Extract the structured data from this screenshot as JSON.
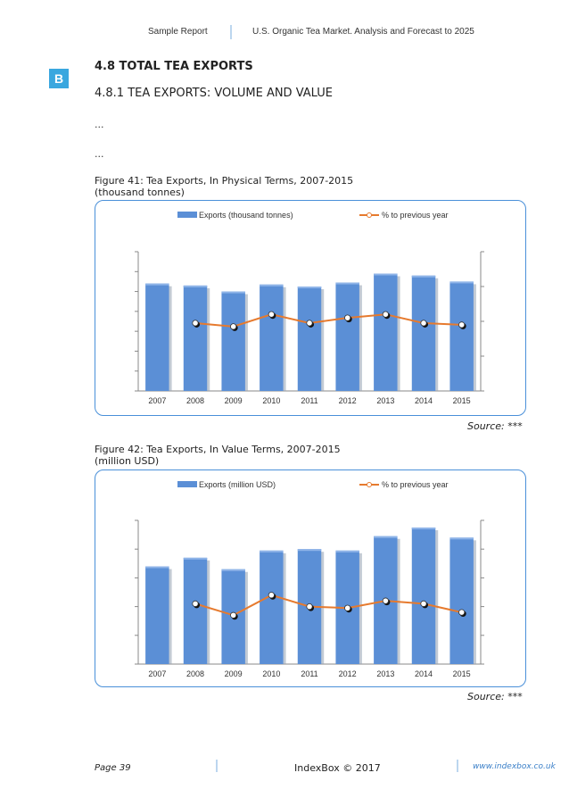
{
  "header": {
    "left": "Sample Report",
    "right": "U.S. Organic Tea Market. Analysis and Forecast to 2025"
  },
  "logo_letter": "B",
  "section": {
    "title": "4.8 TOTAL TEA EXPORTS",
    "subtitle": "4.8.1 TEA EXPORTS: VOLUME AND VALUE",
    "ellipsis_1": "...",
    "ellipsis_2": "..."
  },
  "figures": [
    {
      "caption_line1": "Figure 41: Tea Exports, In Physical Terms, 2007-2015",
      "caption_line2": "(thousand tonnes)",
      "source_label": "Source:",
      "source_value": "***"
    },
    {
      "caption_line1": "Figure 42: Tea Exports, In Value Terms, 2007-2015",
      "caption_line2": "(million USD)",
      "source_label": "Source:",
      "source_value": "***"
    }
  ],
  "chart_data": [
    {
      "type": "bar",
      "title": "Tea Exports, In Physical Terms, 2007-2015",
      "categories": [
        "2007",
        "2008",
        "2009",
        "2010",
        "2011",
        "2012",
        "2013",
        "2014",
        "2015"
      ],
      "series": [
        {
          "name": "Exports (thousand tonnes)",
          "type": "bar",
          "axis": "left",
          "values": [
            5.4,
            5.3,
            5.0,
            5.35,
            5.25,
            5.45,
            5.9,
            5.8,
            5.5
          ]
        },
        {
          "name": "% to previous year",
          "type": "line",
          "axis": "right",
          "values": [
            null,
            1.95,
            1.85,
            2.2,
            1.95,
            2.1,
            2.2,
            1.95,
            1.9
          ]
        }
      ],
      "ylim_left": [
        0,
        7
      ],
      "ylim_right": [
        0,
        4
      ],
      "grid": false,
      "legend": "top",
      "colors": {
        "bar": "#5b8fd6",
        "line": "#e67a2e"
      }
    },
    {
      "type": "bar",
      "title": "Tea Exports, In Value Terms, 2007-2015",
      "categories": [
        "2007",
        "2008",
        "2009",
        "2010",
        "2011",
        "2012",
        "2013",
        "2014",
        "2015"
      ],
      "series": [
        {
          "name": "Exports (million  USD)",
          "type": "bar",
          "axis": "left",
          "values": [
            3.4,
            3.7,
            3.3,
            3.95,
            4.0,
            3.95,
            4.45,
            4.75,
            4.4
          ]
        },
        {
          "name": "% to previous year",
          "type": "line",
          "axis": "right",
          "values": [
            null,
            2.1,
            1.7,
            2.4,
            2.0,
            1.95,
            2.2,
            2.1,
            1.8
          ]
        }
      ],
      "ylim_left": [
        0,
        5
      ],
      "ylim_right": [
        0,
        5
      ],
      "grid": false,
      "legend": "top",
      "colors": {
        "bar": "#5b8fd6",
        "line": "#e67a2e"
      }
    }
  ],
  "footer": {
    "page": "Page 39",
    "copyright": "IndexBox © 2017",
    "url": "www.indexbox.co.uk"
  }
}
